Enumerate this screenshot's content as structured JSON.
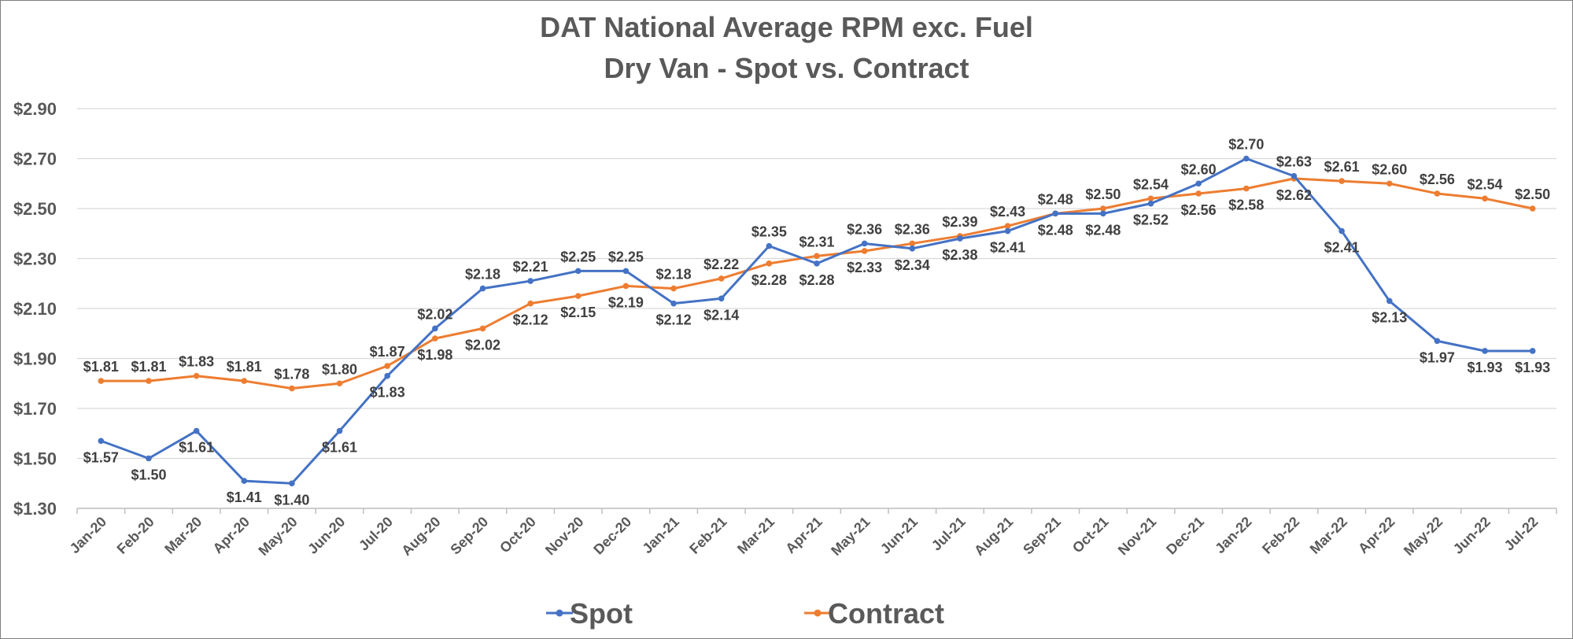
{
  "chart_data": {
    "type": "line",
    "title": "DAT National Average RPM exc. Fuel",
    "subtitle": "Dry Van - Spot vs. Contract",
    "xlabel": "",
    "ylabel": "",
    "ylim": [
      1.3,
      2.9
    ],
    "yticks": [
      "$1.30",
      "$1.50",
      "$1.70",
      "$1.90",
      "$2.10",
      "$2.30",
      "$2.50",
      "$2.70",
      "$2.90"
    ],
    "grid": true,
    "legend_position": "bottom",
    "categories": [
      "Jan-20",
      "Feb-20",
      "Mar-20",
      "Apr-20",
      "May-20",
      "Jun-20",
      "Jul-20",
      "Aug-20",
      "Sep-20",
      "Oct-20",
      "Nov-20",
      "Dec-20",
      "Jan-21",
      "Feb-21",
      "Mar-21",
      "Apr-21",
      "May-21",
      "Jun-21",
      "Jul-21",
      "Aug-21",
      "Sep-21",
      "Oct-21",
      "Nov-21",
      "Dec-21",
      "Jan-22",
      "Feb-22",
      "Mar-22",
      "Apr-22",
      "May-22",
      "Jun-22",
      "Jul-22"
    ],
    "series": [
      {
        "name": "Spot",
        "color": "#4472c4",
        "values": [
          1.57,
          1.5,
          1.61,
          1.41,
          1.4,
          1.61,
          1.83,
          2.02,
          2.18,
          2.21,
          2.25,
          2.25,
          2.12,
          2.14,
          2.35,
          2.28,
          2.36,
          2.34,
          2.38,
          2.41,
          2.48,
          2.48,
          2.52,
          2.6,
          2.7,
          2.63,
          2.41,
          2.13,
          1.97,
          1.93,
          1.93
        ],
        "labels": [
          "$1.57",
          "$1.50",
          "$1.61",
          "$1.41",
          "$1.40",
          "$1.61",
          "$1.83",
          "$2.02",
          "$2.18",
          "$2.21",
          "$2.25",
          "$2.25",
          "$2.12",
          "$2.14",
          "$2.35",
          "$2.28",
          "$2.36",
          "$2.34",
          "$2.38",
          "$2.41",
          "$2.48",
          "$2.48",
          "$2.52",
          "$2.60",
          "$2.70",
          "$2.63",
          "$2.41",
          "$2.13",
          "$1.97",
          "$1.93",
          "$1.93"
        ]
      },
      {
        "name": "Contract",
        "color": "#ed7d31",
        "values": [
          1.81,
          1.81,
          1.83,
          1.81,
          1.78,
          1.8,
          1.87,
          1.98,
          2.02,
          2.12,
          2.15,
          2.19,
          2.18,
          2.22,
          2.28,
          2.31,
          2.33,
          2.36,
          2.39,
          2.43,
          2.48,
          2.5,
          2.54,
          2.56,
          2.58,
          2.62,
          2.61,
          2.6,
          2.56,
          2.54,
          2.5
        ],
        "labels": [
          "$1.81",
          "$1.81",
          "$1.83",
          "$1.81",
          "$1.78",
          "$1.80",
          "$1.87",
          "$1.98",
          "$2.02",
          "$2.12",
          "$2.15",
          "$2.19",
          "$2.18",
          "$2.22",
          "$2.28",
          "$2.31",
          "$2.33",
          "$2.36",
          "$2.39",
          "$2.43",
          "$2.48",
          "$2.50",
          "$2.54",
          "$2.56",
          "$2.58",
          "$2.62",
          "$2.61",
          "$2.60",
          "$2.56",
          "$2.54",
          "$2.50"
        ]
      }
    ]
  }
}
